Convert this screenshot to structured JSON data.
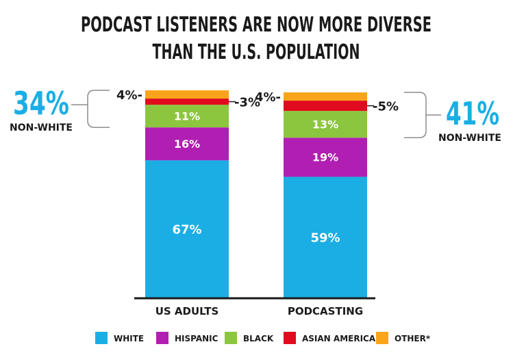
{
  "chart_data": {
    "type": "bar",
    "stacked": true,
    "title_lines": [
      "PODCAST LISTENERS ARE NOW MORE DIVERSE",
      "THAN THE U.S. POPULATION"
    ],
    "categories": [
      "US ADULTS",
      "PODCASTING"
    ],
    "series": [
      {
        "name": "WHITE",
        "color": "#1aaee5",
        "values": [
          67,
          59
        ],
        "labels": [
          "67%",
          "59%"
        ]
      },
      {
        "name": "HISPANIC",
        "color": "#b11eb2",
        "values": [
          16,
          19
        ],
        "labels": [
          "16%",
          "19%"
        ]
      },
      {
        "name": "BLACK",
        "color": "#8cc63f",
        "values": [
          11,
          13
        ],
        "labels": [
          "11%",
          "13%"
        ]
      },
      {
        "name": "ASIAN AMERICAN",
        "color": "#e00b1e",
        "values": [
          3,
          5
        ],
        "labels": [
          "-3%",
          "-5%"
        ]
      },
      {
        "name": "OTHER*",
        "color": "#f9a51a",
        "values": [
          4,
          4
        ],
        "labels": [
          "4%-",
          "4%-"
        ]
      }
    ],
    "ylim": [
      0,
      105
    ],
    "grid": false,
    "legend_position": "bottom",
    "summaries": [
      {
        "value": "34%",
        "label": "NON-WHITE",
        "color": "#1aaee5"
      },
      {
        "value": "41%",
        "label": "NON-WHITE",
        "color": "#1aaee5"
      }
    ]
  }
}
